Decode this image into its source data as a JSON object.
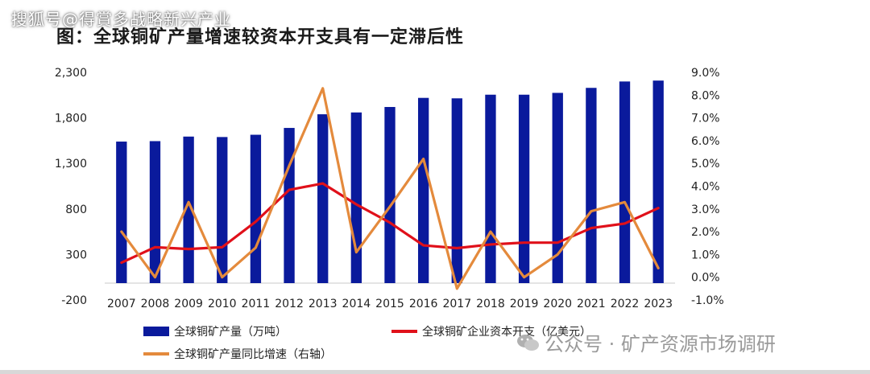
{
  "watermark_top": "搜狐号@得賞多战略新兴产业",
  "watermark_bottom": "公众号 · 矿产资源市场调研",
  "chart_data": {
    "type": "bar",
    "title": "图：全球铜矿产量增速较资本开支具有一定滞后性",
    "categories": [
      "2007",
      "2008",
      "2009",
      "2010",
      "2011",
      "2012",
      "2013",
      "2014",
      "2015",
      "2016",
      "2017",
      "2018",
      "2019",
      "2020",
      "2021",
      "2022",
      "2023"
    ],
    "y_left": {
      "min": -200,
      "max": 2300,
      "ticks": [
        "-200",
        "300",
        "800",
        "1,300",
        "1,800",
        "2,300"
      ]
    },
    "y_right": {
      "min": -1.0,
      "max": 9.0,
      "ticks": [
        "-1.0%",
        "0.0%",
        "1.0%",
        "2.0%",
        "3.0%",
        "4.0%",
        "5.0%",
        "6.0%",
        "7.0%",
        "8.0%",
        "9.0%"
      ]
    },
    "series": [
      {
        "name": "全球铜矿产量（万吨）",
        "type": "bar",
        "axis": "left",
        "color": "#0a1a9c",
        "values": [
          1540,
          1545,
          1595,
          1590,
          1615,
          1690,
          1840,
          1860,
          1920,
          2020,
          2015,
          2055,
          2055,
          2075,
          2130,
          2200,
          2210
        ]
      },
      {
        "name": "全球铜矿企业资本开支（亿美元）",
        "type": "line",
        "axis": "left",
        "color": "#e0101a",
        "values": [
          210,
          380,
          360,
          380,
          660,
          1010,
          1080,
          850,
          650,
          400,
          370,
          410,
          430,
          430,
          590,
          640,
          810
        ]
      },
      {
        "name": "全球铜矿产量同比增速（右轴）",
        "type": "line",
        "axis": "right",
        "color": "#e48a3c",
        "values": [
          2.0,
          0.0,
          3.3,
          0.0,
          1.3,
          4.9,
          8.3,
          1.1,
          3.1,
          5.2,
          -0.5,
          2.0,
          0.0,
          1.0,
          2.9,
          3.3,
          0.4
        ]
      }
    ]
  }
}
